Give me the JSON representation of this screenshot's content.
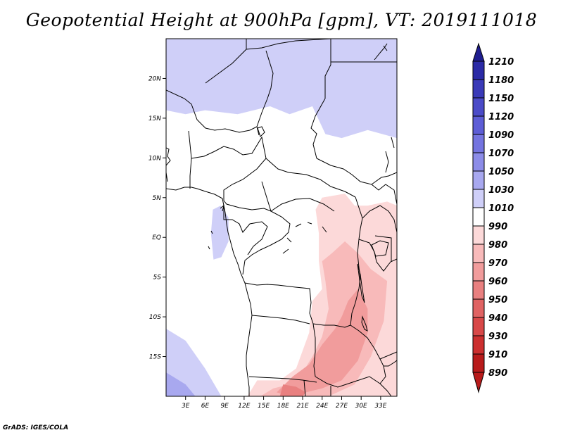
{
  "title": "Geopotential Height at 900hPa [gpm], VT: 2019111018",
  "footer": "GrADS: IGES/COLA",
  "chart_data": {
    "type": "heatmap",
    "title": "Geopotential Height at 900hPa [gpm], VT: 2019111018",
    "variable": "Geopotential Height",
    "level": "900hPa",
    "units": "gpm",
    "valid_time": "2019111018",
    "x_range": [
      0,
      35.5
    ],
    "y_range": [
      -20,
      25
    ],
    "x_ticks": [
      {
        "value": 3,
        "label": "3E"
      },
      {
        "value": 6,
        "label": "6E"
      },
      {
        "value": 9,
        "label": "9E"
      },
      {
        "value": 12,
        "label": "12E"
      },
      {
        "value": 15,
        "label": "15E"
      },
      {
        "value": 18,
        "label": "18E"
      },
      {
        "value": 21,
        "label": "21E"
      },
      {
        "value": 24,
        "label": "24E"
      },
      {
        "value": 27,
        "label": "27E"
      },
      {
        "value": 30,
        "label": "30E"
      },
      {
        "value": 33,
        "label": "33E"
      }
    ],
    "y_ticks": [
      {
        "value": 20,
        "label": "20N"
      },
      {
        "value": 15,
        "label": "15N"
      },
      {
        "value": 10,
        "label": "10N"
      },
      {
        "value": 5,
        "label": "5N"
      },
      {
        "value": 0,
        "label": "EQ"
      },
      {
        "value": -5,
        "label": "5S"
      },
      {
        "value": -10,
        "label": "10S"
      },
      {
        "value": -15,
        "label": "15S"
      }
    ],
    "colorbar": {
      "levels": [
        1210,
        1180,
        1150,
        1120,
        1090,
        1070,
        1050,
        1030,
        1010,
        990,
        980,
        970,
        960,
        950,
        940,
        930,
        910,
        890
      ],
      "colors": [
        "#1f1d8f",
        "#2b2aa6",
        "#3a3ab8",
        "#4b4bc8",
        "#5d5dd6",
        "#7474e0",
        "#8c8ce8",
        "#a8a8ef",
        "#cfcff8",
        "#ffffff",
        "#fcd9d9",
        "#f8baba",
        "#f19c9c",
        "#e98080",
        "#e06363",
        "#d84848",
        "#cc2f2f",
        "#b81b1b"
      ]
    },
    "regions": [
      {
        "label": "1030-1050",
        "color": "#a8a8ef",
        "polygon": [
          [
            12.5,
            25
          ],
          [
            20.5,
            25
          ],
          [
            22.5,
            22.5
          ],
          [
            21.5,
            19.5
          ],
          [
            19,
            20
          ],
          [
            16,
            21.5
          ],
          [
            14,
            22.5
          ]
        ]
      },
      {
        "label": "1010-1030",
        "color": "#cfcff8",
        "polygon": [
          [
            0,
            25
          ],
          [
            35.5,
            25
          ],
          [
            35.5,
            12.5
          ],
          [
            31,
            13.5
          ],
          [
            27,
            12.5
          ],
          [
            24.5,
            13
          ],
          [
            22.5,
            16.5
          ],
          [
            19,
            15.5
          ],
          [
            16,
            16.5
          ],
          [
            11,
            15.5
          ],
          [
            6,
            16
          ],
          [
            3,
            15.5
          ],
          [
            0,
            16
          ]
        ]
      },
      {
        "label": "1010-1030",
        "color": "#cfcff8",
        "polygon": [
          [
            7.2,
            3.5
          ],
          [
            8.4,
            4
          ],
          [
            9.6,
            2.5
          ],
          [
            9.6,
            -0.5
          ],
          [
            8.5,
            -2.5
          ],
          [
            7.3,
            -2.8
          ],
          [
            6.9,
            0.5
          ]
        ]
      },
      {
        "label": "1010-1030",
        "color": "#cfcff8",
        "polygon": [
          [
            0,
            -11.5
          ],
          [
            3,
            -13
          ],
          [
            6,
            -16.5
          ],
          [
            8.5,
            -20
          ],
          [
            0,
            -20
          ]
        ]
      },
      {
        "label": "1030-1050",
        "color": "#a8a8ef",
        "polygon": [
          [
            0,
            -17
          ],
          [
            3,
            -18.5
          ],
          [
            4.5,
            -20
          ],
          [
            0,
            -20
          ]
        ]
      },
      {
        "label": "1010-1030",
        "color": "#cfcff8",
        "polygon": [
          [
            33.5,
            -17
          ],
          [
            35.5,
            -16
          ],
          [
            35.5,
            -20
          ],
          [
            34.5,
            -20
          ]
        ]
      },
      {
        "label": "980-990",
        "color": "#fcd9d9",
        "polygon": [
          [
            23,
            3.5
          ],
          [
            24,
            5
          ],
          [
            27.5,
            5.5
          ],
          [
            29,
            4
          ],
          [
            31,
            4
          ],
          [
            34,
            4.5
          ],
          [
            35.5,
            4
          ],
          [
            35.5,
            -20
          ],
          [
            12.5,
            -20
          ],
          [
            14,
            -18
          ],
          [
            17.5,
            -18
          ],
          [
            20,
            -16.5
          ],
          [
            22,
            -12
          ],
          [
            22.5,
            -8
          ],
          [
            24,
            -6.5
          ],
          [
            23.5,
            -3
          ],
          [
            23.5,
            0.5
          ]
        ]
      },
      {
        "label": "970-980",
        "color": "#f8baba",
        "polygon": [
          [
            24,
            -3
          ],
          [
            25.5,
            -2
          ],
          [
            27.5,
            -0.5
          ],
          [
            29.5,
            -2
          ],
          [
            31.5,
            -4
          ],
          [
            34,
            -5.5
          ],
          [
            33.5,
            -10.5
          ],
          [
            31.5,
            -15
          ],
          [
            29,
            -18.5
          ],
          [
            25,
            -20
          ],
          [
            14.5,
            -20
          ],
          [
            16.5,
            -19
          ],
          [
            19,
            -18.5
          ],
          [
            21,
            -17
          ],
          [
            22.5,
            -15
          ],
          [
            24,
            -12.5
          ],
          [
            25,
            -9
          ],
          [
            24.5,
            -5.5
          ]
        ]
      },
      {
        "label": "960-970",
        "color": "#f19c9c",
        "polygon": [
          [
            28,
            -8
          ],
          [
            29.5,
            -6.5
          ],
          [
            31,
            -9
          ],
          [
            31,
            -12
          ],
          [
            29.5,
            -15.5
          ],
          [
            27,
            -18
          ],
          [
            24,
            -19
          ],
          [
            19,
            -20
          ],
          [
            17,
            -19.5
          ],
          [
            19.5,
            -17.5
          ],
          [
            22,
            -16
          ],
          [
            24,
            -13.5
          ],
          [
            26,
            -11.5
          ],
          [
            27,
            -10
          ]
        ]
      },
      {
        "label": "950-960",
        "color": "#e98080",
        "polygon": [
          [
            18,
            -18.5
          ],
          [
            20,
            -18.8
          ],
          [
            21.5,
            -19.5
          ],
          [
            21,
            -20
          ],
          [
            17.5,
            -20
          ]
        ]
      }
    ]
  }
}
